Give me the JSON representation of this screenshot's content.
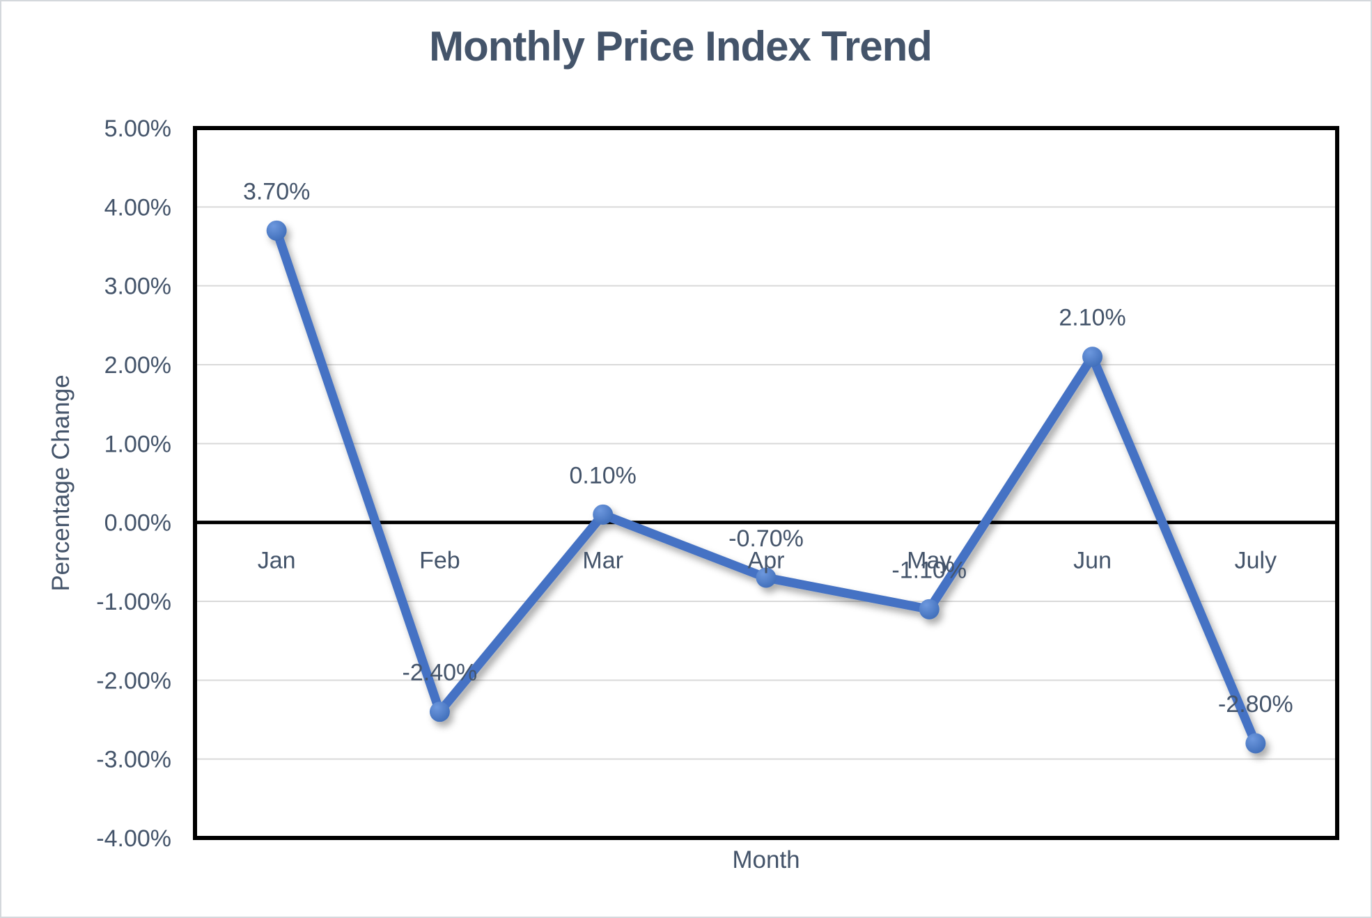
{
  "window": {
    "background": "#FFFFFF",
    "frame_border_color": "#D4D8DC"
  },
  "chart_data": {
    "type": "line",
    "title": "Monthly Price Index Trend",
    "xlabel": "Month",
    "ylabel": "Percentage Change",
    "categories": [
      "Jan",
      "Feb",
      "Mar",
      "Apr",
      "May",
      "Jun",
      "July"
    ],
    "values": [
      3.7,
      -2.4,
      0.1,
      -0.7,
      -1.1,
      2.1,
      -2.8
    ],
    "data_labels": [
      "3.70%",
      "-2.40%",
      "0.10%",
      "-0.70%",
      "-1.10%",
      "2.10%",
      "-2.80%"
    ],
    "ylim": [
      -4,
      5
    ],
    "ytick_step": 1,
    "ytick_labels": [
      "5.00%",
      "4.00%",
      "3.00%",
      "2.00%",
      "1.00%",
      "0.00%",
      "-1.00%",
      "-2.00%",
      "-3.00%",
      "-4.00%"
    ],
    "grid": true,
    "legend": "none",
    "colors": {
      "line": "#4472C4",
      "marker_light": "#6D98DE",
      "marker_dark": "#3E6CB8",
      "text": "#44546A",
      "gridline": "#D9D9D9",
      "zero_axis": "#000000",
      "plot_border": "#000000"
    }
  }
}
